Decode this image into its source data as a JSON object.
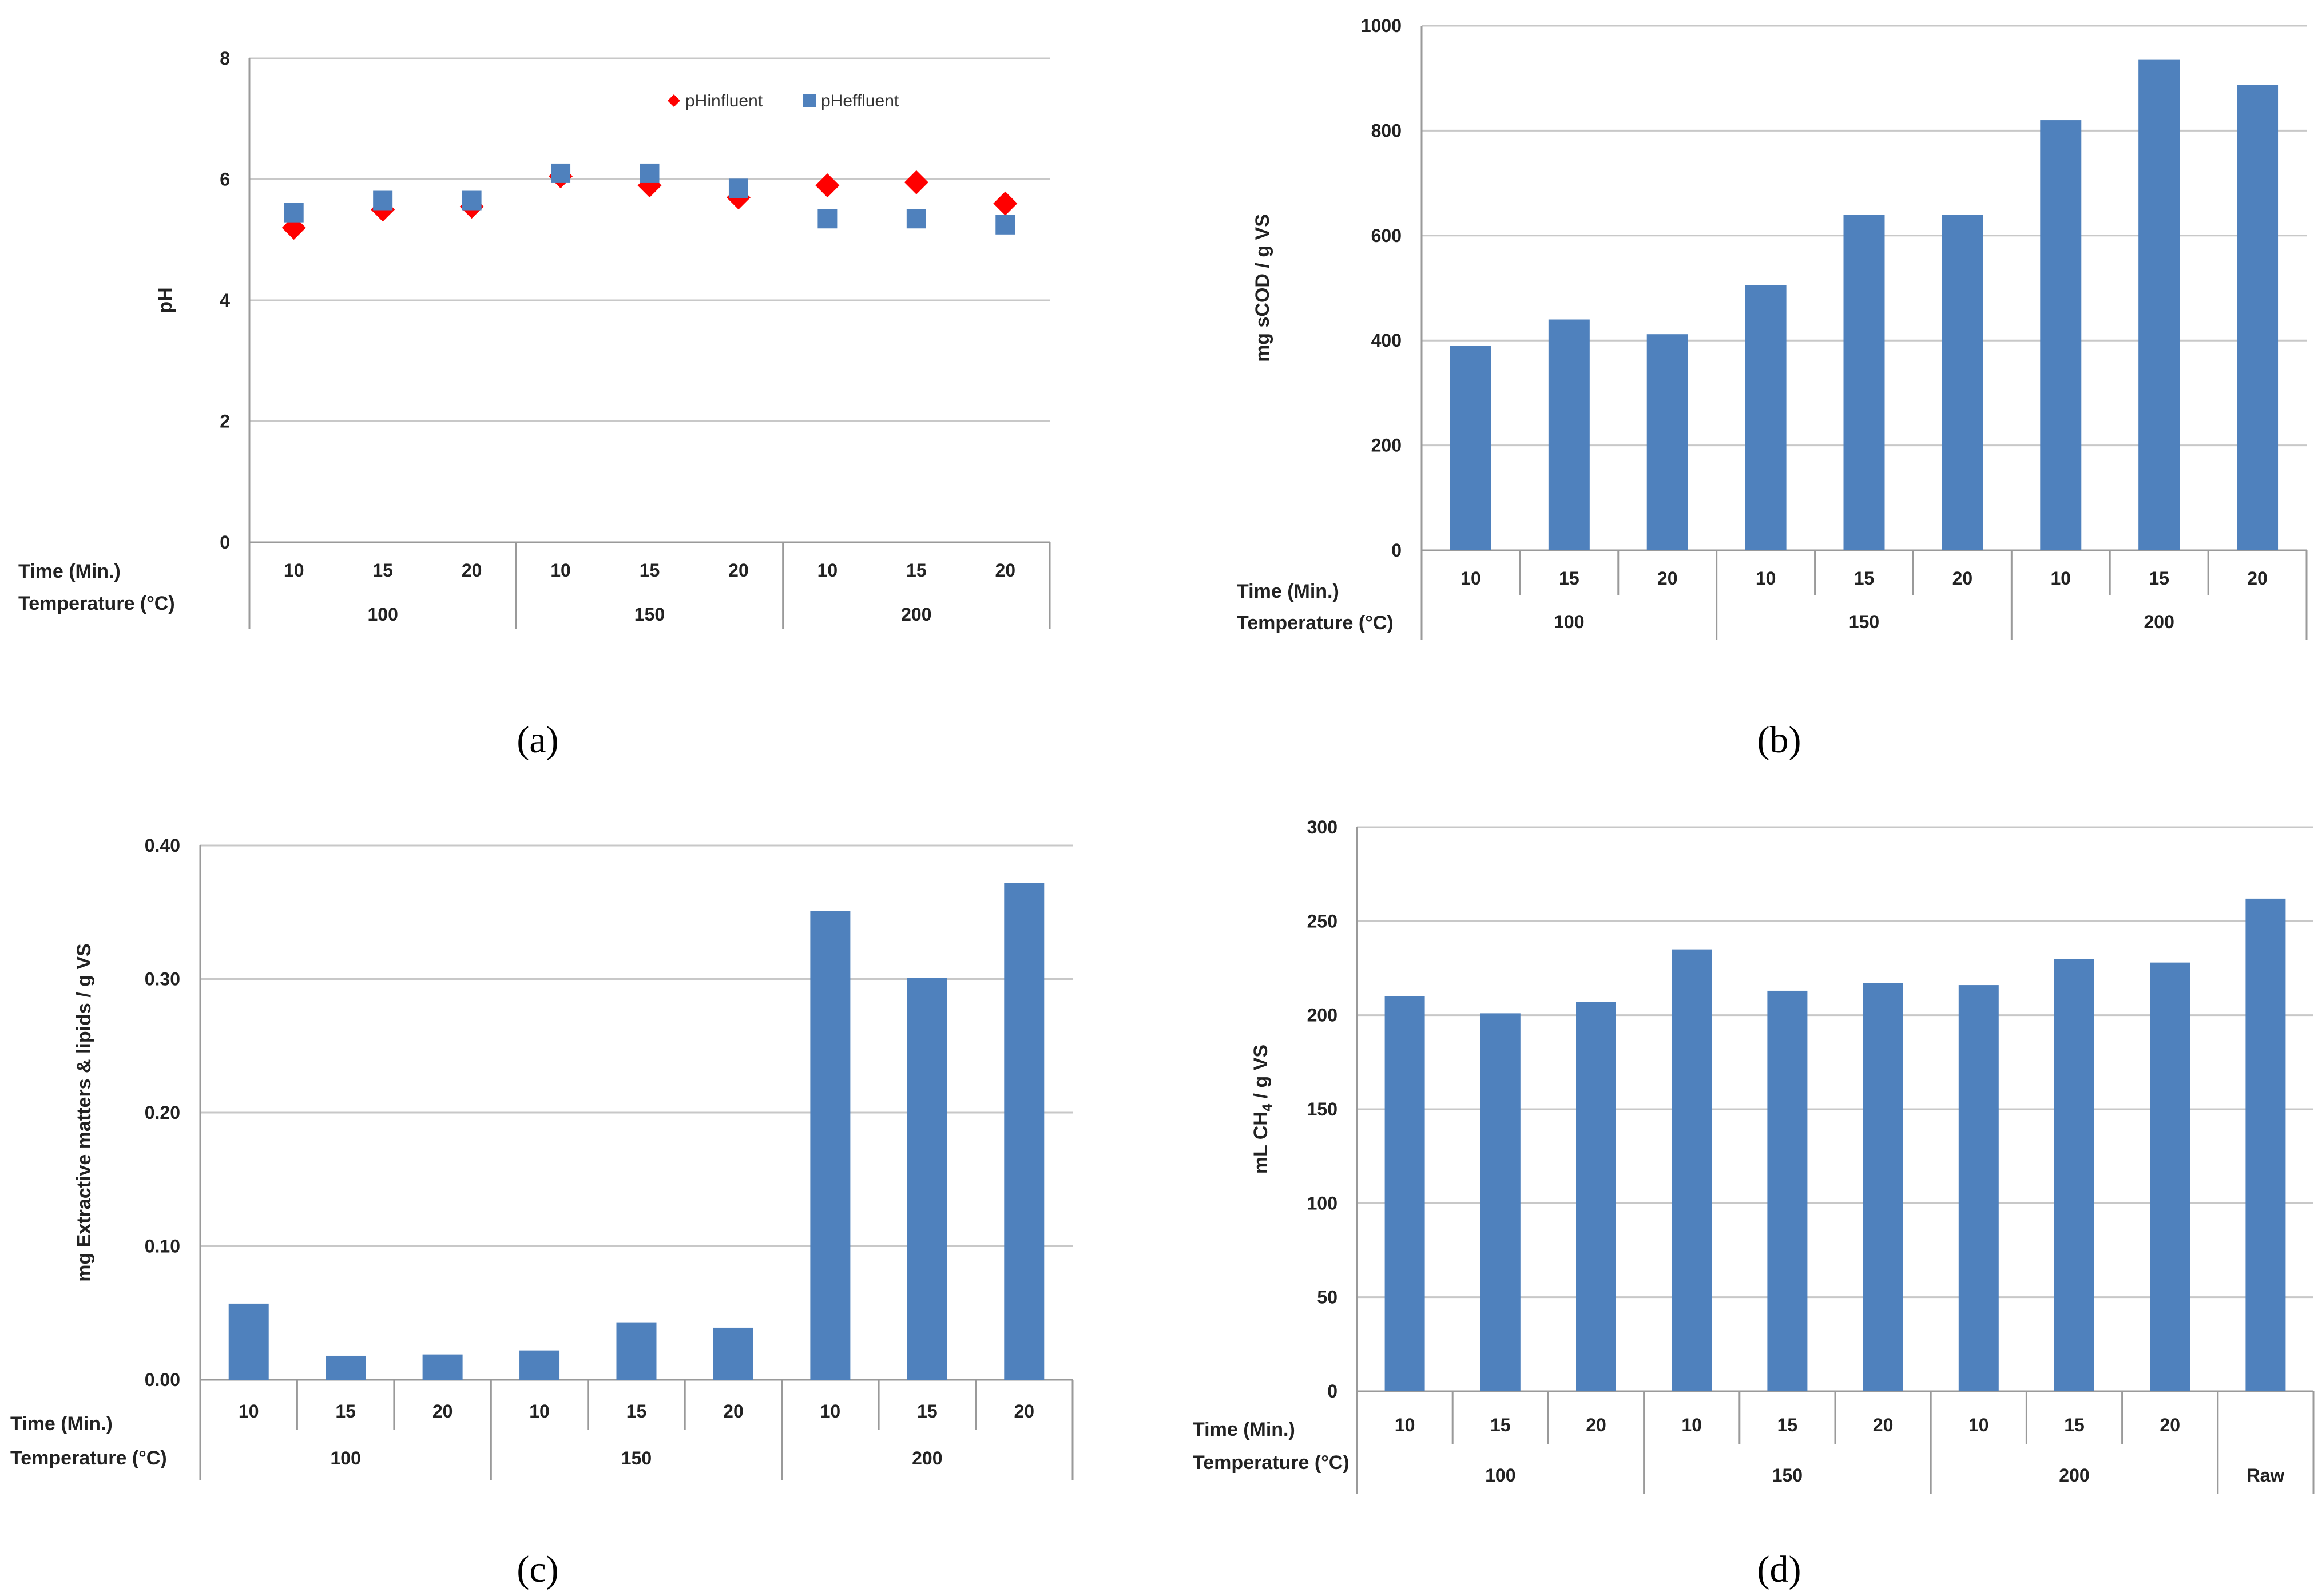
{
  "chart_data": [
    {
      "id": "a",
      "type": "scatter",
      "caption": "(a)",
      "ylabel": "pH",
      "ylim": [
        0,
        8
      ],
      "yticks": [
        "0",
        "2",
        "4",
        "6",
        "8"
      ],
      "grid": true,
      "legend_position": "top-right",
      "row_labels": [
        "Time (Min.)",
        "Temperature (°C)"
      ],
      "times": [
        "10",
        "15",
        "20",
        "10",
        "15",
        "20",
        "10",
        "15",
        "20"
      ],
      "groups": [
        "100",
        "150",
        "200"
      ],
      "series": [
        {
          "name": "pHinfluent",
          "marker": "diamond",
          "color": "#ff0000",
          "values": [
            5.2,
            5.5,
            5.55,
            6.05,
            5.9,
            5.7,
            5.9,
            5.95,
            5.6
          ]
        },
        {
          "name": "pHeffluent",
          "marker": "square",
          "color": "#4f81bd",
          "values": [
            5.45,
            5.65,
            5.65,
            6.1,
            6.1,
            5.85,
            5.35,
            5.35,
            5.25
          ]
        }
      ]
    },
    {
      "id": "b",
      "type": "bar",
      "caption": "(b)",
      "ylabel": "mg sCOD / g VS",
      "ylim": [
        0,
        1000
      ],
      "yticks": [
        "0",
        "200",
        "400",
        "600",
        "800",
        "1000"
      ],
      "grid": true,
      "color": "#4f81bd",
      "row_labels": [
        "Time (Min.)",
        "Temperature  (°C)"
      ],
      "times": [
        "10",
        "15",
        "20",
        "10",
        "15",
        "20",
        "10",
        "15",
        "20"
      ],
      "groups": [
        "100",
        "150",
        "200"
      ],
      "values": [
        390,
        440,
        412,
        505,
        640,
        640,
        820,
        935,
        887
      ]
    },
    {
      "id": "c",
      "type": "bar",
      "caption": "(c)",
      "ylabel": "mg  Extractive matters  & lipids / g VS",
      "ylim": [
        0,
        0.4
      ],
      "yticks": [
        "0.00",
        "0.10",
        "0.20",
        "0.30",
        "0.40"
      ],
      "grid": true,
      "color": "#4f81bd",
      "row_labels": [
        "Time (Min.)",
        "Temperature (°C)"
      ],
      "times": [
        "10",
        "15",
        "20",
        "10",
        "15",
        "20",
        "10",
        "15",
        "20"
      ],
      "groups": [
        "100",
        "150",
        "200"
      ],
      "values": [
        0.057,
        0.018,
        0.019,
        0.022,
        0.043,
        0.039,
        0.351,
        0.301,
        0.372
      ]
    },
    {
      "id": "d",
      "type": "bar",
      "caption": "(d)",
      "ylabel_parts": [
        "mL CH",
        "4",
        " / g VS"
      ],
      "ylim": [
        0,
        300
      ],
      "yticks": [
        "0",
        "50",
        "100",
        "150",
        "200",
        "250",
        "300"
      ],
      "grid": true,
      "color": "#4f81bd",
      "row_labels": [
        "Time (Min.)",
        "Temperature (°C)"
      ],
      "times": [
        "10",
        "15",
        "20",
        "10",
        "15",
        "20",
        "10",
        "15",
        "20",
        ""
      ],
      "groups": [
        "100",
        "150",
        "200",
        "Raw"
      ],
      "values": [
        210,
        201,
        207,
        235,
        213,
        217,
        216,
        230,
        228,
        262
      ]
    }
  ]
}
